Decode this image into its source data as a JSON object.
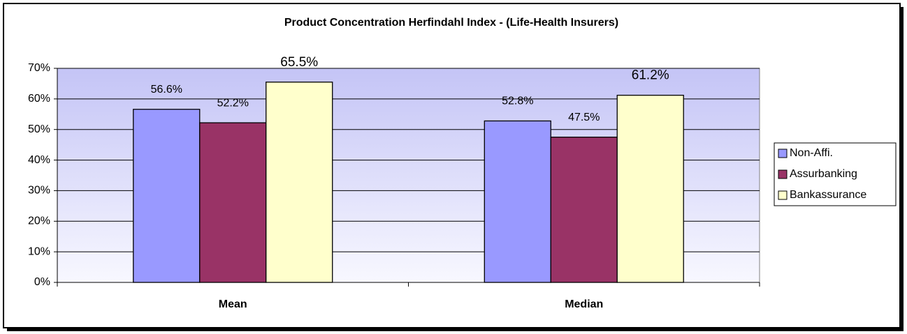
{
  "chart_data": {
    "type": "bar",
    "title": "Product Concentration Herfindahl Index  - (Life-Health Insurers)",
    "categories": [
      "Mean",
      "Median"
    ],
    "series": [
      {
        "name": "Non-Affi.",
        "color": "#9999ff",
        "values": [
          56.6,
          52.8
        ],
        "value_labels": [
          "56.6%",
          "52.8%"
        ]
      },
      {
        "name": "Assurbanking",
        "color": "#993366",
        "values": [
          52.2,
          47.5
        ],
        "value_labels": [
          "52.2%",
          "47.5%"
        ]
      },
      {
        "name": "Bankassurance",
        "color": "#ffffcc",
        "values": [
          65.5,
          61.2
        ],
        "value_labels": [
          "65.5%",
          "61.2%"
        ]
      }
    ],
    "ylim": [
      0,
      70
    ],
    "yticks": [
      {
        "value": 0,
        "label": "0%"
      },
      {
        "value": 10,
        "label": "10%"
      },
      {
        "value": 20,
        "label": "20%"
      },
      {
        "value": 30,
        "label": "30%"
      },
      {
        "value": 40,
        "label": "40%"
      },
      {
        "value": 50,
        "label": "50%"
      },
      {
        "value": 60,
        "label": "60%"
      },
      {
        "value": 70,
        "label": "70%"
      }
    ],
    "grid": true,
    "legend": "right"
  }
}
